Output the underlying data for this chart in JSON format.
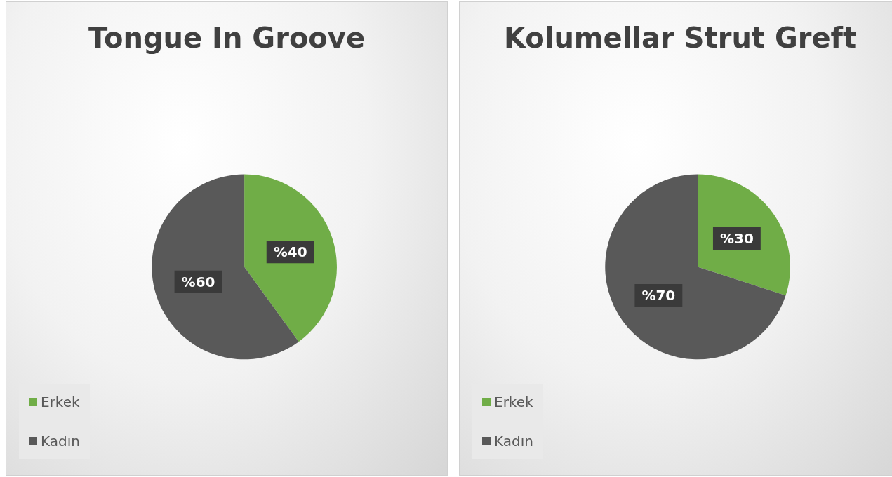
{
  "chart_data": [
    {
      "type": "pie",
      "title": "Tongue In Groove",
      "categories": [
        "Erkek",
        "Kadın"
      ],
      "values": [
        40,
        60
      ],
      "colors": [
        "#70ad47",
        "#595959"
      ],
      "value_labels": [
        "%40",
        "%60"
      ],
      "legend": "bottom left"
    },
    {
      "type": "pie",
      "title": "Kolumellar Strut Greft",
      "categories": [
        "Erkek",
        "Kadın"
      ],
      "values": [
        30,
        70
      ],
      "colors": [
        "#70ad47",
        "#595959"
      ],
      "value_labels": [
        "%30",
        "%70"
      ],
      "legend": "bottom left"
    }
  ]
}
